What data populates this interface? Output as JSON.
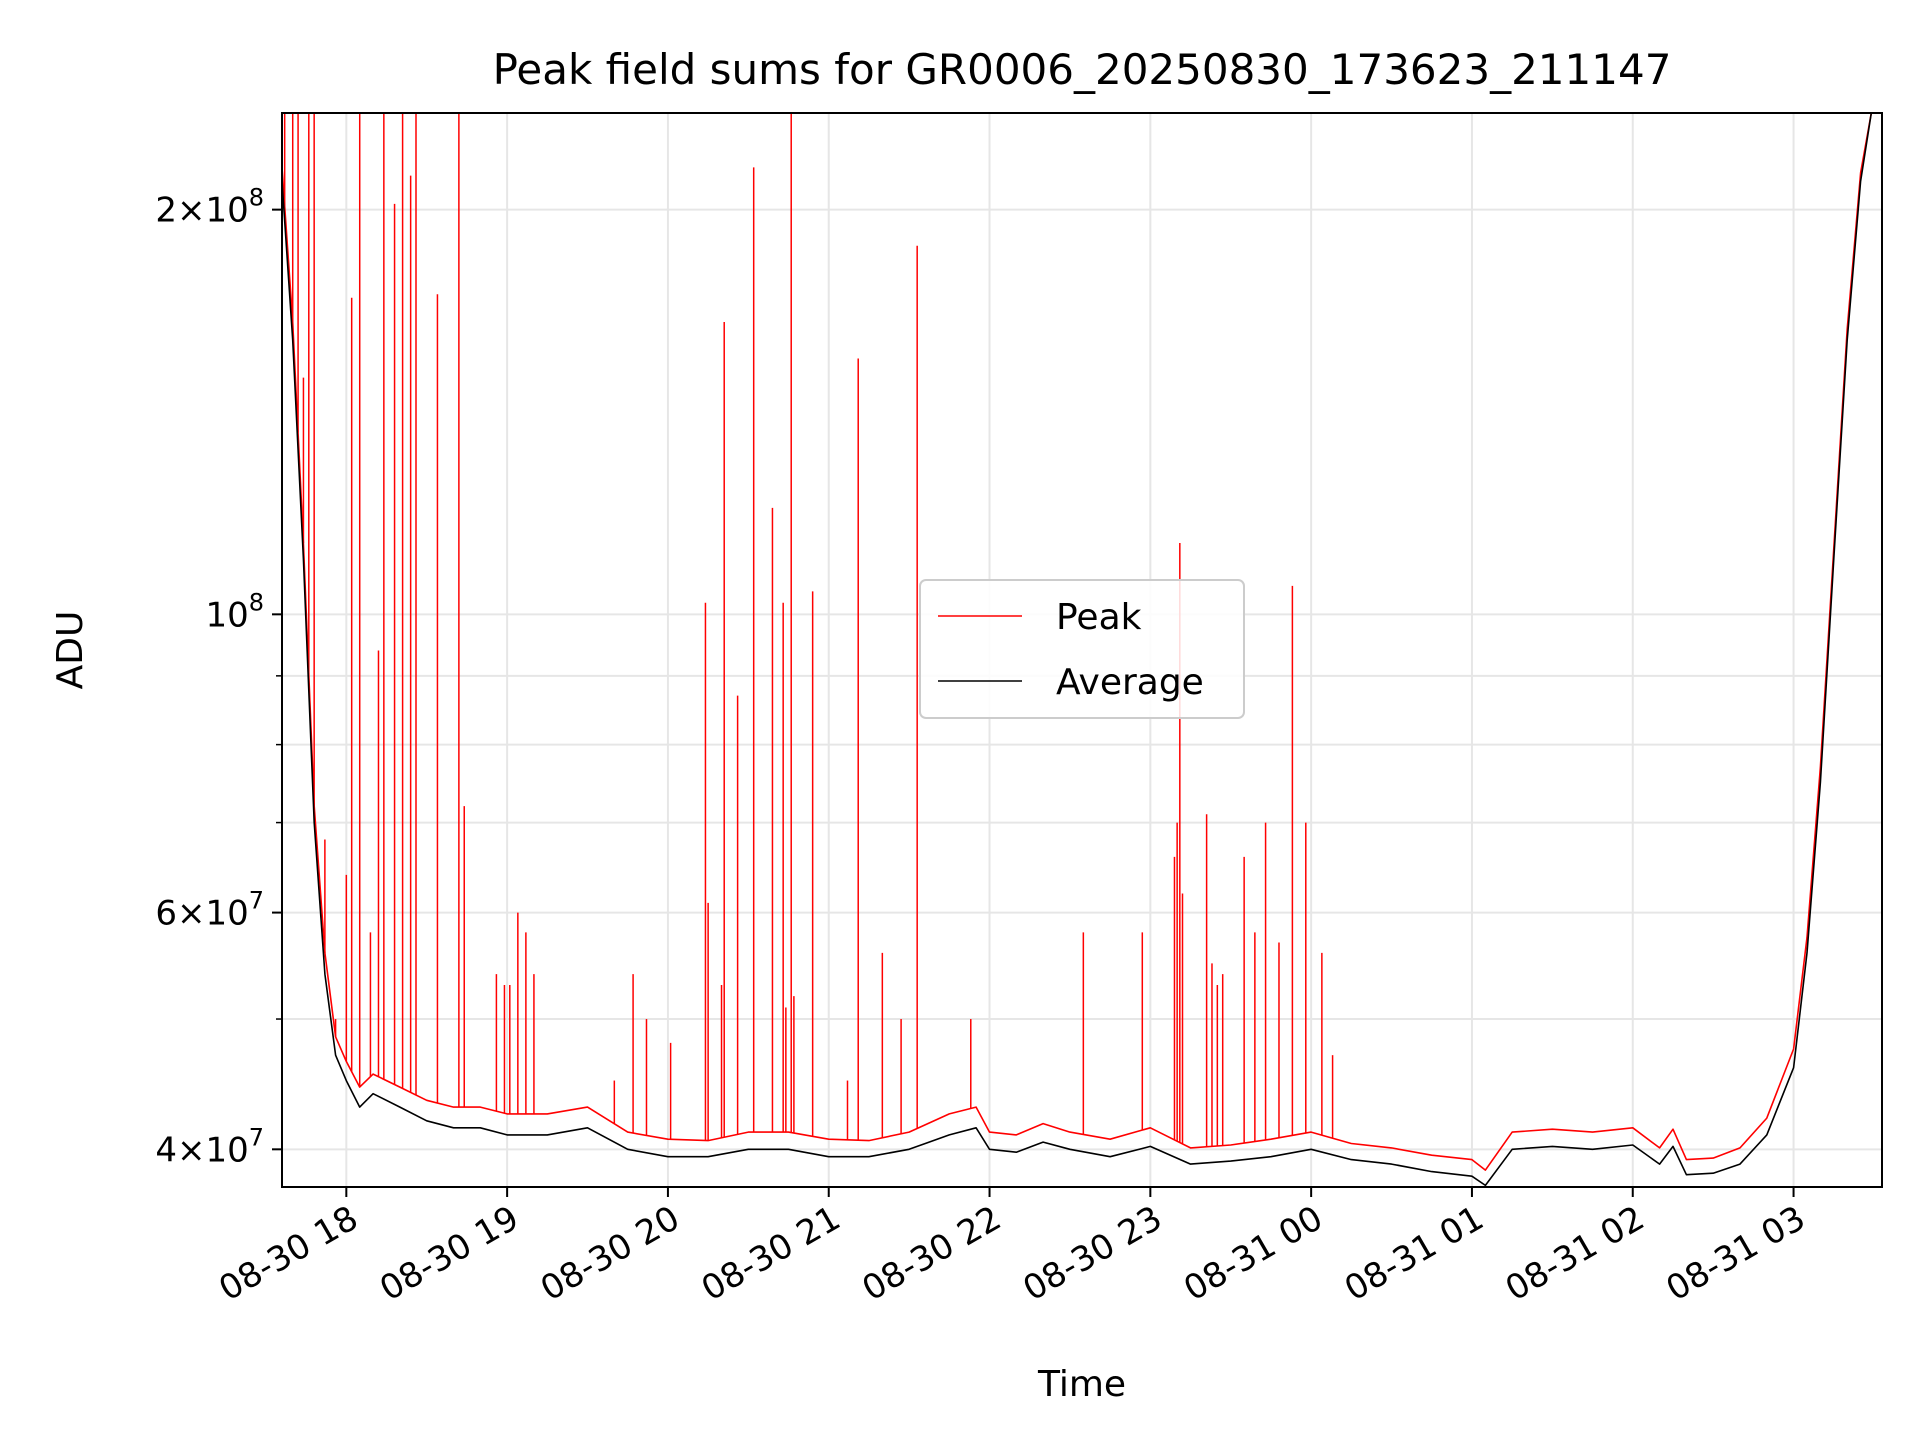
{
  "chart_data": {
    "type": "line",
    "title": "Peak field sums for GR0006_20250830_173623_211147",
    "xlabel": "Time",
    "ylabel": "ADU",
    "yscale": "log",
    "ylim": [
      37500000,
      236000000
    ],
    "xlim": [
      "08-30 17:36",
      "08-31 03:33"
    ],
    "grid": true,
    "legend_position": "center",
    "x_ticks": [
      "08-30 18",
      "08-30 19",
      "08-30 20",
      "08-30 21",
      "08-30 22",
      "08-30 23",
      "08-31 00",
      "08-31 01",
      "08-31 02",
      "08-31 03"
    ],
    "y_ticks": [
      {
        "value": 40000000,
        "base": "4",
        "exp": "7"
      },
      {
        "value": 60000000,
        "base": "6",
        "exp": "7"
      },
      {
        "value": 100000000,
        "base": "",
        "exp": "8"
      },
      {
        "value": 200000000,
        "base": "2",
        "exp": "8"
      }
    ],
    "y_minor_ticks": [
      50000000,
      70000000,
      80000000,
      90000000
    ],
    "series": [
      {
        "name": "Average",
        "color": "#000000",
        "x": [
          "08-30 17:36",
          "08-30 17:40",
          "08-30 17:44",
          "08-30 17:48",
          "08-30 17:52",
          "08-30 17:56",
          "08-30 18:00",
          "08-30 18:05",
          "08-30 18:10",
          "08-30 18:20",
          "08-30 18:30",
          "08-30 18:40",
          "08-30 18:50",
          "08-30 19:00",
          "08-30 19:15",
          "08-30 19:30",
          "08-30 19:45",
          "08-30 20:00",
          "08-30 20:15",
          "08-30 20:30",
          "08-30 20:45",
          "08-30 21:00",
          "08-30 21:15",
          "08-30 21:30",
          "08-30 21:45",
          "08-30 21:55",
          "08-30 22:00",
          "08-30 22:10",
          "08-30 22:20",
          "08-30 22:30",
          "08-30 22:45",
          "08-30 23:00",
          "08-30 23:15",
          "08-30 23:30",
          "08-30 23:45",
          "08-31 00:00",
          "08-31 00:15",
          "08-31 00:30",
          "08-31 00:45",
          "08-31 01:00",
          "08-31 01:05",
          "08-31 01:15",
          "08-31 01:30",
          "08-31 01:45",
          "08-31 02:00",
          "08-31 02:10",
          "08-31 02:15",
          "08-31 02:20",
          "08-31 02:30",
          "08-31 02:40",
          "08-31 02:50",
          "08-31 03:00",
          "08-31 03:05",
          "08-31 03:10",
          "08-31 03:15",
          "08-31 03:20",
          "08-31 03:25",
          "08-31 03:29"
        ],
        "y": [
          210000000,
          160000000,
          110000000,
          70000000,
          54000000,
          47000000,
          45000000,
          43000000,
          44000000,
          43000000,
          42000000,
          41500000,
          41500000,
          41000000,
          41000000,
          41500000,
          40000000,
          39500000,
          39500000,
          40000000,
          40000000,
          39500000,
          39500000,
          40000000,
          41000000,
          41500000,
          40000000,
          39800000,
          40500000,
          40000000,
          39500000,
          40200000,
          39000000,
          39200000,
          39500000,
          40000000,
          39300000,
          39000000,
          38500000,
          38200000,
          37600000,
          40000000,
          40200000,
          40000000,
          40300000,
          39000000,
          40200000,
          38300000,
          38400000,
          39000000,
          41000000,
          46000000,
          56000000,
          75000000,
          110000000,
          160000000,
          210000000,
          236000000
        ]
      },
      {
        "name": "Peak",
        "color": "#ff0000",
        "x": [
          "08-30 17:36",
          "08-30 17:40",
          "08-30 17:44",
          "08-30 17:48",
          "08-30 17:52",
          "08-30 17:56",
          "08-30 18:00",
          "08-30 18:05",
          "08-30 18:10",
          "08-30 18:20",
          "08-30 18:30",
          "08-30 18:40",
          "08-30 18:50",
          "08-30 19:00",
          "08-30 19:15",
          "08-30 19:30",
          "08-30 19:45",
          "08-30 20:00",
          "08-30 20:15",
          "08-30 20:30",
          "08-30 20:45",
          "08-30 21:00",
          "08-30 21:15",
          "08-30 21:30",
          "08-30 21:45",
          "08-30 21:55",
          "08-30 22:00",
          "08-30 22:10",
          "08-30 22:20",
          "08-30 22:30",
          "08-30 22:45",
          "08-30 23:00",
          "08-30 23:15",
          "08-30 23:30",
          "08-30 23:45",
          "08-31 00:00",
          "08-31 00:15",
          "08-31 00:30",
          "08-31 00:45",
          "08-31 01:00",
          "08-31 01:05",
          "08-31 01:15",
          "08-31 01:30",
          "08-31 01:45",
          "08-31 02:00",
          "08-31 02:10",
          "08-31 02:15",
          "08-31 02:20",
          "08-31 02:30",
          "08-31 02:40",
          "08-31 02:50",
          "08-31 03:00",
          "08-31 03:05",
          "08-31 03:10",
          "08-31 03:15",
          "08-31 03:20",
          "08-31 03:25",
          "08-31 03:29"
        ],
        "y": [
          215000000,
          165000000,
          113000000,
          72000000,
          56000000,
          48500000,
          46500000,
          44500000,
          45500000,
          44500000,
          43500000,
          43000000,
          43000000,
          42500000,
          42500000,
          43000000,
          41200000,
          40700000,
          40600000,
          41200000,
          41200000,
          40700000,
          40600000,
          41200000,
          42500000,
          43000000,
          41200000,
          41000000,
          41800000,
          41200000,
          40700000,
          41500000,
          40100000,
          40300000,
          40700000,
          41200000,
          40400000,
          40100000,
          39600000,
          39300000,
          38600000,
          41200000,
          41400000,
          41200000,
          41500000,
          40100000,
          41400000,
          39300000,
          39400000,
          40100000,
          42200000,
          47500000,
          57500000,
          77000000,
          112000000,
          163000000,
          213000000,
          236000000
        ]
      }
    ],
    "peak_spikes": {
      "series": "Peak",
      "x": [
        "08-30 17:37",
        "08-30 17:40",
        "08-30 17:42",
        "08-30 17:44",
        "08-30 17:46",
        "08-30 17:48",
        "08-30 17:52",
        "08-30 17:56",
        "08-30 18:00",
        "08-30 18:02",
        "08-30 18:05",
        "08-30 18:09",
        "08-30 18:12",
        "08-30 18:14",
        "08-30 18:18",
        "08-30 18:21",
        "08-30 18:24",
        "08-30 18:26",
        "08-30 18:34",
        "08-30 18:42",
        "08-30 18:44",
        "08-30 18:56",
        "08-30 18:59",
        "08-30 19:01",
        "08-30 19:04",
        "08-30 19:07",
        "08-30 19:10",
        "08-30 19:40",
        "08-30 19:47",
        "08-30 19:52",
        "08-30 20:01",
        "08-30 20:14",
        "08-30 20:15",
        "08-30 20:20",
        "08-30 20:21",
        "08-30 20:26",
        "08-30 20:32",
        "08-30 20:39",
        "08-30 20:43",
        "08-30 20:44",
        "08-30 20:46",
        "08-30 20:47",
        "08-30 20:54",
        "08-30 21:07",
        "08-30 21:11",
        "08-30 21:20",
        "08-30 21:27",
        "08-30 21:33",
        "08-30 21:53",
        "08-30 22:35",
        "08-30 22:57",
        "08-30 23:09",
        "08-30 23:10",
        "08-30 23:11",
        "08-30 23:12",
        "08-30 23:21",
        "08-30 23:23",
        "08-30 23:25",
        "08-30 23:27",
        "08-30 23:35",
        "08-30 23:39",
        "08-30 23:43",
        "08-30 23:48",
        "08-30 23:53",
        "08-30 23:58",
        "08-31 00:04",
        "08-31 00:08"
      ],
      "y": [
        236000000,
        236000000,
        236000000,
        150000000,
        236000000,
        236000000,
        68000000,
        50000000,
        64000000,
        172000000,
        236000000,
        58000000,
        94000000,
        236000000,
        202000000,
        236000000,
        212000000,
        236000000,
        173000000,
        236000000,
        72000000,
        54000000,
        53000000,
        53000000,
        60000000,
        58000000,
        54000000,
        45000000,
        54000000,
        50000000,
        48000000,
        102000000,
        61000000,
        53000000,
        165000000,
        87000000,
        215000000,
        120000000,
        102000000,
        51000000,
        236000000,
        52000000,
        104000000,
        45000000,
        155000000,
        56000000,
        50000000,
        188000000,
        50000000,
        58000000,
        58000000,
        66000000,
        70000000,
        113000000,
        62000000,
        71000000,
        55000000,
        53000000,
        54000000,
        66000000,
        58000000,
        70000000,
        57000000,
        105000000,
        70000000,
        56000000,
        47000000
      ]
    }
  }
}
